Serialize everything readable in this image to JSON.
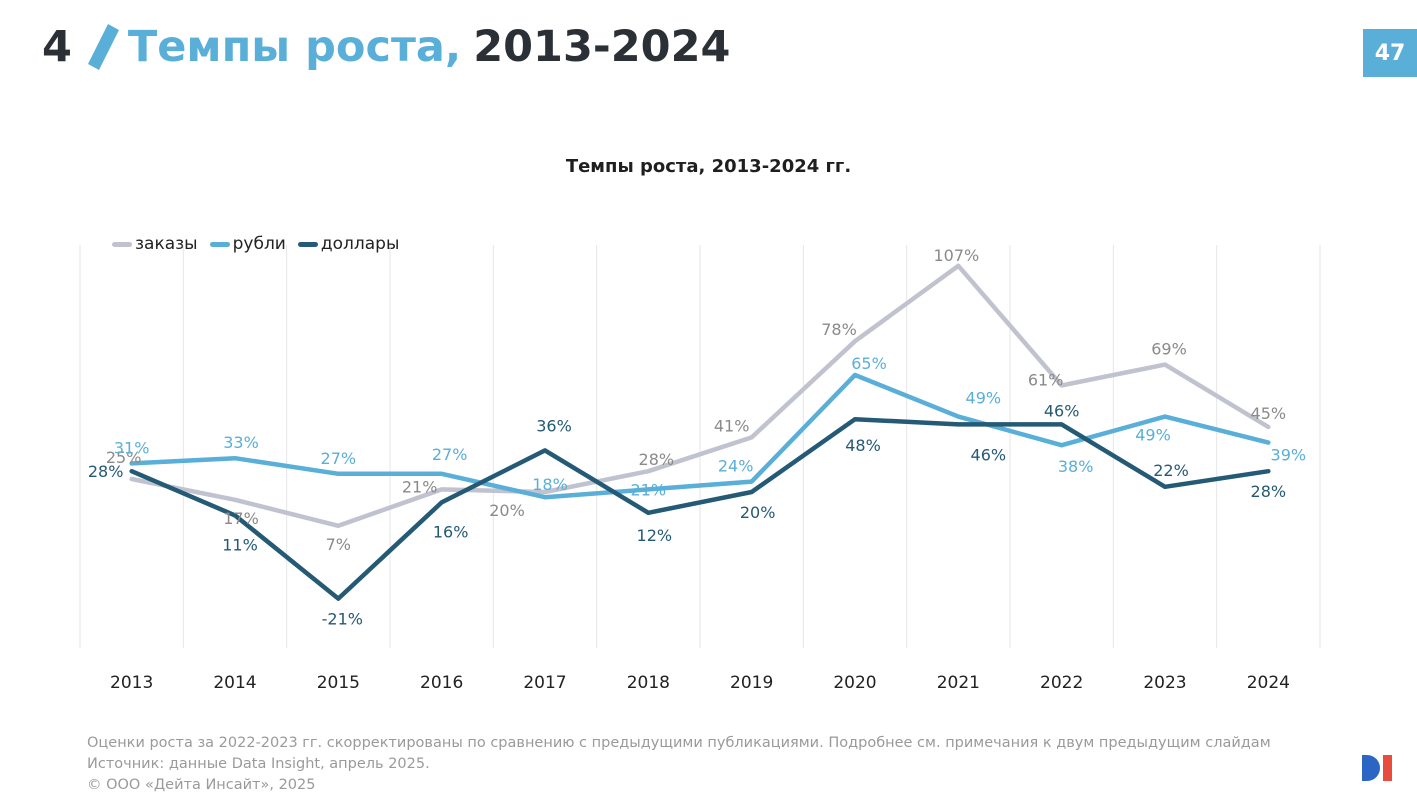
{
  "header": {
    "section_number": "4",
    "title_blue": "Темпы роста,",
    "title_dark": "2013-2024",
    "page_number": "47"
  },
  "colors": {
    "accent": "#5aafd8",
    "orders": "#c0c3cf",
    "rubles": "#5aafd8",
    "dollars": "#245a75",
    "logo_blue": "#2c66c4",
    "logo_red": "#e74c3c"
  },
  "chart_data": {
    "type": "line",
    "title": "Темпы роста, 2013-2024 гг.",
    "categories": [
      "2013",
      "2014",
      "2015",
      "2016",
      "2017",
      "2018",
      "2019",
      "2020",
      "2021",
      "2022",
      "2023",
      "2024"
    ],
    "series": [
      {
        "name": "заказы",
        "color": "#c0c3cf",
        "values": [
          25,
          17,
          7,
          21,
          20,
          28,
          41,
          78,
          107,
          61,
          69,
          45
        ],
        "labels": [
          "25%",
          "17%",
          "7%",
          "21%",
          "20%",
          "28%",
          "41%",
          "78%",
          "107%",
          "61%",
          "69%",
          "45%"
        ]
      },
      {
        "name": "рубли",
        "color": "#5aafd8",
        "values": [
          31,
          33,
          27,
          27,
          18,
          21,
          24,
          65,
          49,
          38,
          49,
          39
        ],
        "labels": [
          "31%",
          "33%",
          "27%",
          "27%",
          "18%",
          "21%",
          "24%",
          "65%",
          "49%",
          "38%",
          "49%",
          "39%"
        ]
      },
      {
        "name": "доллары",
        "color": "#245a75",
        "values": [
          28,
          11,
          -21,
          16,
          36,
          12,
          20,
          48,
          46,
          46,
          22,
          28
        ],
        "labels": [
          "28%",
          "11%",
          "-21%",
          "16%",
          "36%",
          "12%",
          "20%",
          "48%",
          "46%",
          "46%",
          "22%",
          "28%"
        ]
      }
    ],
    "ylim": [
      -40,
      115
    ],
    "grid": "vertical",
    "legend_position": "top-left"
  },
  "footer": {
    "note": "Оценки роста за 2022-2023 гг. скорректированы по сравнению с предыдущими публикациями. Подробнее см. примечания к двум предыдущим слайдам",
    "source": "Источник: данные Data Insight, апрель 2025.",
    "copyright": "© ООО «Дейта Инсайт», 2025"
  }
}
